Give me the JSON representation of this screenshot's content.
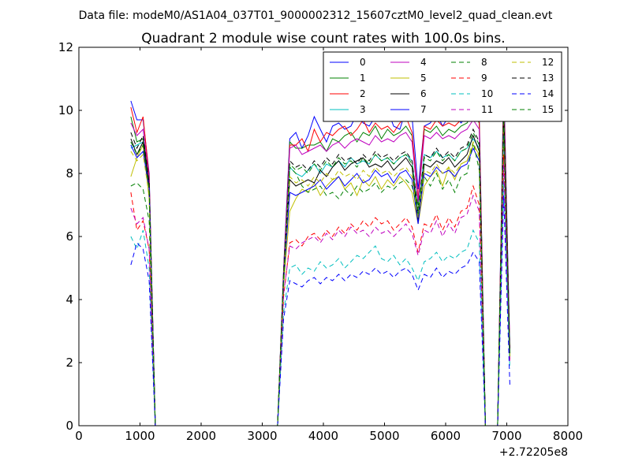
{
  "chart_data": {
    "type": "line",
    "suptitle": "Data file: modeM0/AS1A04_037T01_9000002312_15607cztM0_level2_quad_clean.evt",
    "title": "Quadrant 2 module wise count rates with 100.0s bins.",
    "xlabel": "",
    "ylabel": "",
    "x_offset_label": "+2.72205e8",
    "xlim": [
      0,
      8000
    ],
    "ylim": [
      0,
      12
    ],
    "xticks": [
      0,
      1000,
      2000,
      3000,
      4000,
      5000,
      6000,
      7000,
      8000
    ],
    "yticks": [
      0,
      2,
      4,
      6,
      8,
      10,
      12
    ],
    "xtick_labels": [
      "0",
      "1000",
      "2000",
      "3000",
      "4000",
      "5000",
      "6000",
      "7000",
      "8000"
    ],
    "ytick_labels": [
      "0",
      "2",
      "4",
      "6",
      "8",
      "10",
      "12"
    ],
    "grid": false,
    "legend_position": "top-right",
    "x": [
      850,
      950,
      1050,
      1150,
      1250,
      1350,
      3150,
      3250,
      3350,
      3450,
      3550,
      3650,
      3750,
      3850,
      3950,
      4050,
      4150,
      4250,
      4350,
      4450,
      4550,
      4650,
      4750,
      4850,
      4950,
      5050,
      5150,
      5250,
      5350,
      5450,
      5550,
      5650,
      5750,
      5850,
      5950,
      6050,
      6150,
      6250,
      6350,
      6450,
      6550,
      6650,
      6750,
      6850,
      6950,
      7050
    ],
    "series": [
      {
        "name": "0",
        "color": "#0000ff",
        "dash": "solid",
        "values": [
          10.3,
          9.7,
          9.7,
          8.0,
          0.0,
          0.0,
          0.0,
          0.0,
          5.0,
          9.1,
          9.3,
          8.8,
          9.2,
          9.8,
          9.4,
          9.0,
          9.5,
          9.6,
          9.4,
          9.5,
          9.9,
          9.6,
          9.5,
          9.8,
          9.9,
          10.0,
          9.5,
          9.4,
          10.0,
          9.8,
          7.5,
          9.5,
          9.6,
          9.9,
          9.5,
          9.8,
          9.9,
          9.6,
          9.8,
          10.0,
          9.9,
          0.0,
          0.0,
          0.0,
          11.0,
          2.5
        ]
      },
      {
        "name": "1",
        "color": "#008000",
        "dash": "solid",
        "values": [
          9.8,
          9.0,
          9.1,
          7.8,
          0.0,
          0.0,
          0.0,
          0.0,
          4.9,
          9.0,
          8.8,
          8.8,
          8.9,
          8.9,
          9.0,
          8.7,
          9.1,
          9.0,
          9.2,
          9.3,
          9.0,
          9.3,
          9.2,
          9.5,
          9.1,
          9.4,
          9.2,
          9.3,
          9.5,
          9.2,
          7.0,
          9.4,
          9.3,
          9.5,
          9.2,
          9.4,
          9.3,
          9.5,
          9.6,
          9.9,
          9.6,
          0.0,
          0.0,
          0.0,
          10.5,
          2.3
        ]
      },
      {
        "name": "2",
        "color": "#ff0000",
        "dash": "solid",
        "values": [
          10.1,
          9.3,
          9.8,
          7.9,
          0.0,
          0.0,
          0.0,
          0.0,
          4.9,
          8.9,
          8.9,
          9.1,
          8.7,
          9.4,
          9.0,
          9.3,
          9.2,
          9.4,
          9.5,
          9.2,
          9.4,
          9.7,
          9.3,
          9.6,
          9.4,
          9.5,
          9.3,
          9.6,
          9.8,
          9.3,
          7.2,
          9.5,
          9.4,
          9.7,
          9.5,
          9.6,
          9.5,
          9.7,
          9.9,
          10.2,
          9.7,
          0.0,
          0.0,
          0.0,
          10.7,
          2.4
        ]
      },
      {
        "name": "3",
        "color": "#00bfbf",
        "dash": "solid",
        "values": [
          8.8,
          8.9,
          9.0,
          7.5,
          0.0,
          0.0,
          0.0,
          0.0,
          4.7,
          8.2,
          8.0,
          7.9,
          8.1,
          8.3,
          8.0,
          8.3,
          8.2,
          8.4,
          8.2,
          8.5,
          8.3,
          8.4,
          8.3,
          8.6,
          8.4,
          8.5,
          8.3,
          8.5,
          8.6,
          8.4,
          6.7,
          8.6,
          8.5,
          8.7,
          8.5,
          8.6,
          8.4,
          8.7,
          8.8,
          9.1,
          8.8,
          0.0,
          0.0,
          0.0,
          9.7,
          2.2
        ]
      },
      {
        "name": "4",
        "color": "#bf00bf",
        "dash": "solid",
        "values": [
          9.6,
          9.2,
          9.4,
          7.8,
          0.0,
          0.0,
          0.0,
          0.0,
          4.9,
          8.8,
          8.9,
          8.6,
          8.7,
          8.8,
          8.9,
          8.7,
          8.9,
          9.0,
          8.8,
          9.0,
          9.1,
          9.0,
          8.9,
          9.2,
          9.0,
          9.1,
          9.0,
          9.2,
          9.3,
          9.0,
          7.1,
          9.2,
          9.1,
          9.3,
          9.1,
          9.2,
          9.1,
          9.3,
          9.4,
          9.7,
          9.4,
          0.0,
          0.0,
          0.0,
          10.3,
          2.3
        ]
      },
      {
        "name": "5",
        "color": "#bfbf00",
        "dash": "solid",
        "values": [
          7.9,
          8.5,
          8.9,
          7.2,
          0.0,
          0.0,
          0.0,
          0.0,
          4.5,
          6.8,
          7.2,
          7.5,
          7.4,
          7.7,
          7.3,
          7.6,
          7.8,
          7.9,
          7.5,
          7.7,
          7.3,
          7.8,
          7.6,
          7.9,
          7.5,
          7.8,
          7.6,
          7.9,
          7.7,
          7.4,
          6.4,
          7.6,
          7.9,
          8.1,
          7.6,
          8.2,
          7.8,
          8.3,
          8.4,
          8.9,
          8.6,
          0.0,
          0.0,
          0.0,
          9.5,
          2.1
        ]
      },
      {
        "name": "6",
        "color": "#000000",
        "dash": "solid",
        "values": [
          9.1,
          8.6,
          9.0,
          7.6,
          0.0,
          0.0,
          0.0,
          0.0,
          4.8,
          7.8,
          7.6,
          7.7,
          7.8,
          7.7,
          8.1,
          7.9,
          8.2,
          8.4,
          8.1,
          8.3,
          8.4,
          8.5,
          8.2,
          8.3,
          8.2,
          8.4,
          8.1,
          8.3,
          8.5,
          8.2,
          6.5,
          8.3,
          8.2,
          8.4,
          8.3,
          8.5,
          8.2,
          8.4,
          8.6,
          9.2,
          8.7,
          0.0,
          0.0,
          0.0,
          9.8,
          2.2
        ]
      },
      {
        "name": "7",
        "color": "#0000ff",
        "dash": "solid",
        "values": [
          8.9,
          8.5,
          8.7,
          7.5,
          0.0,
          0.0,
          0.0,
          0.0,
          4.6,
          7.4,
          7.3,
          7.4,
          7.5,
          7.6,
          7.8,
          7.5,
          7.7,
          7.9,
          7.6,
          7.8,
          8.0,
          7.7,
          7.8,
          8.1,
          7.9,
          8.0,
          7.7,
          8.0,
          8.1,
          7.8,
          6.4,
          8.0,
          7.9,
          8.2,
          8.0,
          8.1,
          7.9,
          8.2,
          8.3,
          8.8,
          8.4,
          0.0,
          0.0,
          0.0,
          9.6,
          2.2
        ]
      },
      {
        "name": "8",
        "color": "#008000",
        "dash": "dashed",
        "values": [
          7.6,
          7.7,
          7.5,
          6.5,
          0.0,
          0.0,
          0.0,
          0.0,
          4.5,
          8.2,
          8.0,
          7.6,
          7.4,
          7.5,
          7.6,
          7.3,
          7.4,
          7.2,
          7.5,
          7.3,
          7.6,
          7.4,
          7.5,
          7.7,
          7.4,
          7.6,
          7.5,
          7.7,
          7.8,
          7.6,
          6.8,
          7.9,
          7.6,
          8.0,
          7.5,
          7.8,
          7.4,
          7.9,
          8.0,
          9.0,
          8.1,
          0.0,
          0.0,
          0.0,
          9.4,
          2.2
        ]
      },
      {
        "name": "9",
        "color": "#ff0000",
        "dash": "dashed",
        "values": [
          7.4,
          6.2,
          6.5,
          5.6,
          0.0,
          0.0,
          0.0,
          0.0,
          4.1,
          5.8,
          5.9,
          5.7,
          6.0,
          6.1,
          5.9,
          6.2,
          6.0,
          6.3,
          6.1,
          6.4,
          6.2,
          6.5,
          6.3,
          6.6,
          6.4,
          6.5,
          6.2,
          6.4,
          6.6,
          6.3,
          5.5,
          6.4,
          6.3,
          6.7,
          6.2,
          6.6,
          6.3,
          6.8,
          6.9,
          7.6,
          7.0,
          0.0,
          0.0,
          0.0,
          8.6,
          2.0
        ]
      },
      {
        "name": "10",
        "color": "#00bfbf",
        "dash": "dashed",
        "values": [
          6.0,
          5.6,
          6.2,
          5.0,
          0.0,
          0.0,
          0.0,
          0.0,
          3.6,
          5.0,
          5.1,
          4.8,
          5.0,
          4.9,
          5.2,
          5.0,
          5.1,
          5.3,
          5.0,
          5.2,
          5.4,
          5.3,
          5.5,
          5.7,
          5.3,
          5.2,
          5.4,
          5.1,
          5.3,
          5.0,
          4.6,
          5.2,
          5.3,
          5.5,
          5.2,
          5.4,
          5.3,
          5.5,
          5.6,
          6.2,
          5.8,
          0.0,
          0.0,
          0.0,
          7.8,
          1.8
        ]
      },
      {
        "name": "11",
        "color": "#bf00bf",
        "dash": "dashed",
        "values": [
          6.9,
          6.4,
          6.6,
          5.6,
          0.0,
          0.0,
          0.0,
          0.0,
          4.2,
          5.7,
          5.6,
          5.8,
          5.9,
          6.0,
          5.8,
          6.1,
          5.9,
          6.2,
          6.0,
          6.3,
          6.1,
          6.2,
          6.0,
          6.3,
          6.1,
          6.2,
          6.0,
          6.2,
          6.4,
          6.1,
          5.4,
          6.2,
          6.1,
          6.5,
          6.0,
          6.4,
          6.1,
          6.6,
          6.7,
          7.3,
          6.8,
          0.0,
          0.0,
          0.0,
          8.3,
          2.0
        ]
      },
      {
        "name": "12",
        "color": "#bfbf00",
        "dash": "dashed",
        "values": [
          8.7,
          8.4,
          8.6,
          7.3,
          0.0,
          0.0,
          0.0,
          0.0,
          4.7,
          7.9,
          7.7,
          7.8,
          7.6,
          7.9,
          7.7,
          8.0,
          7.8,
          8.1,
          7.9,
          8.0,
          7.8,
          8.1,
          7.9,
          8.2,
          8.0,
          8.1,
          7.9,
          8.1,
          8.2,
          7.9,
          6.6,
          8.1,
          8.0,
          8.3,
          8.0,
          8.2,
          8.0,
          8.3,
          8.4,
          9.0,
          8.5,
          0.0,
          0.0,
          0.0,
          9.9,
          2.2
        ]
      },
      {
        "name": "13",
        "color": "#000000",
        "dash": "dashed",
        "values": [
          9.3,
          8.8,
          9.2,
          7.7,
          0.0,
          0.0,
          0.0,
          0.0,
          4.8,
          8.4,
          8.2,
          8.3,
          8.1,
          8.4,
          8.2,
          8.5,
          8.3,
          8.6,
          8.4,
          8.5,
          8.3,
          8.6,
          8.4,
          8.7,
          8.5,
          8.6,
          8.4,
          8.6,
          8.7,
          8.4,
          6.8,
          8.6,
          8.5,
          8.8,
          8.5,
          8.7,
          8.5,
          8.8,
          8.9,
          9.4,
          9.0,
          0.0,
          0.0,
          0.0,
          10.1,
          2.3
        ]
      },
      {
        "name": "14",
        "color": "#0000ff",
        "dash": "dashed",
        "values": [
          5.1,
          5.8,
          5.6,
          4.6,
          0.0,
          0.0,
          0.0,
          0.0,
          3.4,
          4.6,
          4.5,
          4.4,
          4.6,
          4.7,
          4.5,
          4.7,
          4.6,
          4.8,
          4.6,
          4.8,
          4.7,
          4.9,
          4.8,
          5.0,
          4.8,
          4.9,
          4.7,
          4.9,
          5.0,
          4.8,
          4.3,
          4.8,
          4.7,
          5.0,
          4.7,
          4.9,
          4.8,
          5.0,
          5.1,
          5.5,
          5.2,
          0.0,
          0.0,
          0.0,
          7.3,
          1.3
        ]
      },
      {
        "name": "15",
        "color": "#008000",
        "dash": "dashed",
        "values": [
          9.0,
          8.6,
          8.9,
          7.5,
          0.0,
          0.0,
          0.0,
          0.0,
          4.7,
          8.3,
          8.1,
          8.2,
          8.0,
          8.3,
          8.1,
          8.4,
          8.2,
          8.5,
          8.3,
          8.4,
          8.2,
          8.5,
          8.3,
          8.6,
          8.4,
          8.5,
          8.3,
          8.5,
          8.6,
          8.3,
          6.7,
          8.5,
          8.4,
          8.7,
          8.4,
          8.6,
          8.4,
          8.7,
          8.8,
          9.3,
          8.9,
          0.0,
          0.0,
          0.0,
          10.0,
          2.2
        ]
      }
    ]
  }
}
